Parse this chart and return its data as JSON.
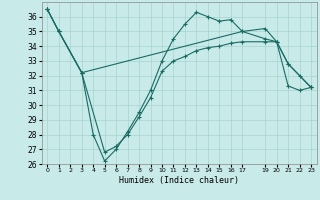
{
  "xlabel": "Humidex (Indice chaleur)",
  "bg_color": "#c8eae8",
  "grid_color": "#a8d4d0",
  "line_color": "#1a6b65",
  "xlim": [
    -0.5,
    23.5
  ],
  "ylim": [
    26,
    37
  ],
  "xticks": [
    0,
    1,
    2,
    3,
    4,
    5,
    6,
    7,
    8,
    9,
    10,
    11,
    12,
    13,
    14,
    15,
    16,
    17,
    19,
    20,
    21,
    22,
    23
  ],
  "yticks": [
    26,
    27,
    28,
    29,
    30,
    31,
    32,
    33,
    34,
    35,
    36
  ],
  "line1_x": [
    0,
    1,
    3,
    17,
    19,
    20,
    21,
    23
  ],
  "line1_y": [
    36.5,
    35.0,
    32.2,
    35.0,
    34.5,
    34.3,
    32.8,
    31.2
  ],
  "line2_x": [
    0,
    1,
    3,
    4,
    5,
    6,
    7,
    8,
    9,
    10,
    11,
    12,
    13,
    14,
    15,
    16,
    17,
    19,
    20,
    21,
    22,
    23
  ],
  "line2_y": [
    36.5,
    35.0,
    32.2,
    28.0,
    26.2,
    27.0,
    28.2,
    29.5,
    31.0,
    33.0,
    34.5,
    35.5,
    36.3,
    36.0,
    35.7,
    35.8,
    35.0,
    35.2,
    34.3,
    32.8,
    32.0,
    31.2
  ],
  "line3_x": [
    0,
    1,
    3,
    5,
    6,
    7,
    8,
    9,
    10,
    11,
    12,
    13,
    14,
    15,
    16,
    17,
    19,
    20,
    21,
    22,
    23
  ],
  "line3_y": [
    36.5,
    35.0,
    32.2,
    26.8,
    27.2,
    28.0,
    29.2,
    30.5,
    32.3,
    33.0,
    33.3,
    33.7,
    33.9,
    34.0,
    34.2,
    34.3,
    34.3,
    34.3,
    31.3,
    31.0,
    31.2
  ]
}
